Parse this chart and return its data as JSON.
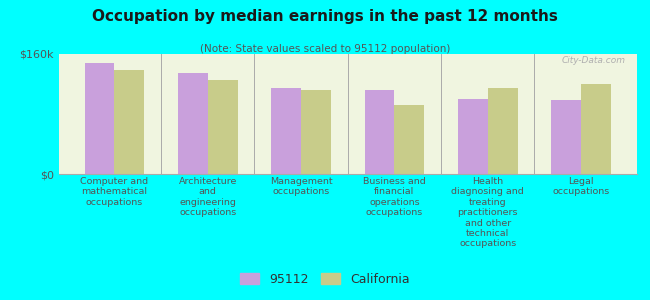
{
  "title": "Occupation by median earnings in the past 12 months",
  "subtitle": "(Note: State values scaled to 95112 population)",
  "categories": [
    "Computer and\nmathematical\noccupations",
    "Architecture\nand\nengineering\noccupations",
    "Management\noccupations",
    "Business and\nfinancial\noperations\noccupations",
    "Health\ndiagnosing and\ntreating\npractitioners\nand other\ntechnical\noccupations",
    "Legal\noccupations"
  ],
  "values_95112": [
    148000,
    135000,
    115000,
    112000,
    100000,
    98000
  ],
  "values_california": [
    138000,
    125000,
    112000,
    92000,
    115000,
    120000
  ],
  "bar_color_95112": "#c9a0dc",
  "bar_color_california": "#c8cc8a",
  "background_color": "#00ffff",
  "plot_bg_color": "#f0f5e0",
  "legend_95112": "95112",
  "legend_california": "California",
  "watermark": "City-Data.com",
  "ylim": [
    0,
    160000
  ],
  "yticklabels": [
    "$0",
    "$160k"
  ]
}
